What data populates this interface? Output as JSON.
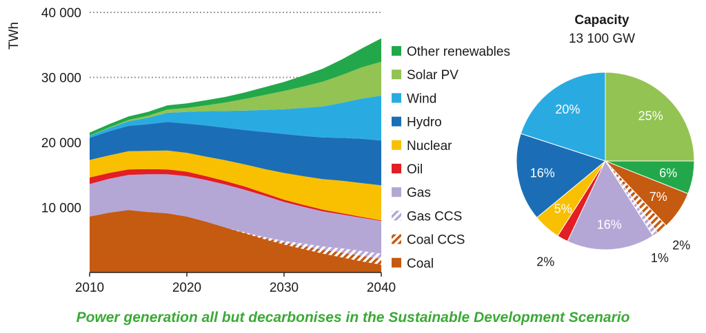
{
  "caption": "Power generation all but decarbonises in the Sustainable Development Scenario",
  "chart_data": [
    {
      "type": "area",
      "stacked": true,
      "ylabel": "TWh",
      "xlabel": "",
      "ylim": [
        0,
        40000
      ],
      "xlim": [
        2010,
        2040
      ],
      "y_ticks": [
        {
          "value": 10000,
          "label": "10 000"
        },
        {
          "value": 20000,
          "label": "20 000"
        },
        {
          "value": 30000,
          "label": "30 000"
        },
        {
          "value": 40000,
          "label": "40 000"
        }
      ],
      "dotted_gridlines": [
        30000,
        40000
      ],
      "x_ticks": [
        {
          "value": 2010,
          "label": "2010"
        },
        {
          "value": 2020,
          "label": "2020"
        },
        {
          "value": 2030,
          "label": "2030"
        },
        {
          "value": 2040,
          "label": "2040"
        }
      ],
      "legend_position": "right",
      "x": [
        2010,
        2012,
        2014,
        2016,
        2018,
        2020,
        2022,
        2024,
        2026,
        2028,
        2030,
        2032,
        2034,
        2036,
        2038,
        2040
      ],
      "series": [
        {
          "name": "Coal",
          "color": "#c55a11",
          "pattern": "solid",
          "values": [
            8600,
            9200,
            9600,
            9300,
            9100,
            8600,
            7800,
            6900,
            6000,
            5100,
            4300,
            3600,
            2900,
            2300,
            1700,
            1200
          ]
        },
        {
          "name": "Coal CCS",
          "color": "#c55a11",
          "pattern": "hatch",
          "values": [
            0,
            0,
            0,
            0,
            0,
            0,
            0,
            0,
            100,
            200,
            300,
            450,
            600,
            750,
            850,
            900
          ]
        },
        {
          "name": "Gas CCS",
          "color": "#b4a7d6",
          "pattern": "hatch",
          "values": [
            0,
            0,
            0,
            0,
            0,
            0,
            0,
            0,
            50,
            150,
            250,
            400,
            500,
            650,
            750,
            800
          ]
        },
        {
          "name": "Gas",
          "color": "#b4a7d6",
          "pattern": "solid",
          "values": [
            5000,
            5200,
            5400,
            5800,
            6000,
            6200,
            6400,
            6600,
            6550,
            6350,
            6000,
            5650,
            5400,
            5200,
            5100,
            5000
          ]
        },
        {
          "name": "Oil",
          "color": "#e31e24",
          "pattern": "solid",
          "values": [
            1000,
            900,
            850,
            800,
            750,
            700,
            600,
            550,
            500,
            400,
            350,
            300,
            250,
            200,
            150,
            100
          ]
        },
        {
          "name": "Nuclear",
          "color": "#f8c000",
          "pattern": "solid",
          "values": [
            2700,
            2700,
            2800,
            2800,
            2900,
            2900,
            3000,
            3200,
            3400,
            3700,
            4100,
            4400,
            4700,
            5000,
            5200,
            5400
          ]
        },
        {
          "name": "Hydro",
          "color": "#1b6eb5",
          "pattern": "solid",
          "values": [
            3400,
            3700,
            3900,
            4100,
            4400,
            4500,
            4800,
            5000,
            5300,
            5700,
            6000,
            6200,
            6400,
            6600,
            6800,
            6900
          ]
        },
        {
          "name": "Wind",
          "color": "#29abe2",
          "pattern": "solid",
          "values": [
            300,
            500,
            700,
            1000,
            1400,
            1800,
            2200,
            2600,
            3000,
            3400,
            3800,
            4300,
            4800,
            5400,
            6200,
            6900
          ]
        },
        {
          "name": "Solar PV",
          "color": "#92c353",
          "pattern": "solid",
          "values": [
            50,
            100,
            200,
            300,
            500,
            600,
            900,
            1300,
            1800,
            2300,
            2800,
            3300,
            3800,
            4300,
            4800,
            5200
          ]
        },
        {
          "name": "Other renewables",
          "color": "#22a84a",
          "pattern": "solid",
          "values": [
            450,
            500,
            550,
            600,
            650,
            700,
            800,
            850,
            1000,
            1200,
            1400,
            1700,
            2000,
            2400,
            2900,
            3600
          ]
        }
      ],
      "legend_order": [
        "Other renewables",
        "Solar PV",
        "Wind",
        "Hydro",
        "Nuclear",
        "Oil",
        "Gas",
        "Gas CCS",
        "Coal CCS",
        "Coal"
      ]
    },
    {
      "type": "pie",
      "title": "Capacity",
      "subtitle": "13 100 GW",
      "start_angle_deg": 0,
      "direction": "clockwise",
      "slices": [
        {
          "name": "Solar PV",
          "value": 25,
          "label": "25%",
          "color": "#92c353",
          "pattern": "solid",
          "label_color": "#ffffff",
          "label_outside": false
        },
        {
          "name": "Other renewables",
          "value": 6,
          "label": "6%",
          "color": "#22a84a",
          "pattern": "solid",
          "label_color": "#ffffff",
          "label_outside": false
        },
        {
          "name": "Coal",
          "value": 7,
          "label": "7%",
          "color": "#c55a11",
          "pattern": "solid",
          "label_color": "#ffffff",
          "label_outside": false
        },
        {
          "name": "Coal CCS",
          "value": 2,
          "label": "2%",
          "color": "#c55a11",
          "pattern": "hatch",
          "label_color": "#1a1a1a",
          "label_outside": true
        },
        {
          "name": "Gas CCS",
          "value": 1,
          "label": "1%",
          "color": "#b4a7d6",
          "pattern": "hatch",
          "label_color": "#1a1a1a",
          "label_outside": true
        },
        {
          "name": "Gas",
          "value": 16,
          "label": "16%",
          "color": "#b4a7d6",
          "pattern": "solid",
          "label_color": "#ffffff",
          "label_outside": false
        },
        {
          "name": "Oil",
          "value": 2,
          "label": "2%",
          "color": "#e31e24",
          "pattern": "solid",
          "label_color": "#1a1a1a",
          "label_outside": true
        },
        {
          "name": "Nuclear",
          "value": 5,
          "label": "5%",
          "color": "#f8c000",
          "pattern": "solid",
          "label_color": "#ffffff",
          "label_outside": false
        },
        {
          "name": "Hydro",
          "value": 16,
          "label": "16%",
          "color": "#1b6eb5",
          "pattern": "solid",
          "label_color": "#ffffff",
          "label_outside": false
        },
        {
          "name": "Wind",
          "value": 20,
          "label": "20%",
          "color": "#29abe2",
          "pattern": "solid",
          "label_color": "#ffffff",
          "label_outside": false
        }
      ]
    }
  ]
}
